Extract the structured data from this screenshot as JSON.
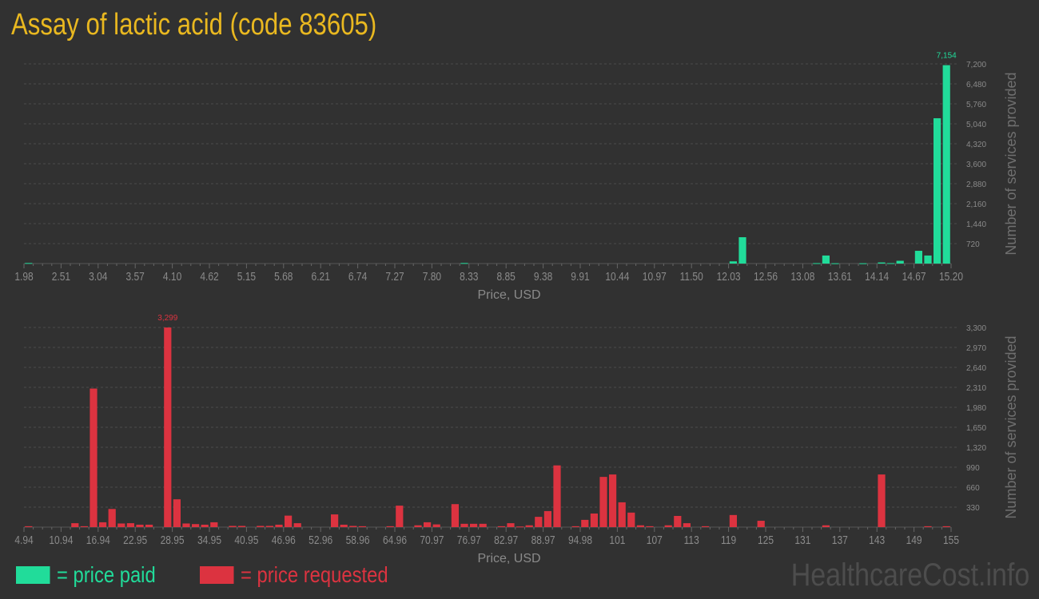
{
  "title": "Assay of lactic acid (code 83605)",
  "legend": {
    "paid": "= price paid",
    "requested": "= price requested"
  },
  "watermark": "HealthcareCost.info",
  "colors": {
    "paid": "#21dc9a",
    "requested": "#dc3340",
    "title": "#e9b820",
    "background": "#313131"
  },
  "chart_data": [
    {
      "type": "bar",
      "series": [
        {
          "name": "price paid"
        }
      ],
      "xlabel": "Price, USD",
      "ylabel": "Number of services provided",
      "xlim": [
        1.98,
        15.2
      ],
      "bin_width": 0.1322,
      "ylim": [
        0,
        7200
      ],
      "x_ticks": [
        "1.98",
        "2.51",
        "3.04",
        "3.57",
        "4.10",
        "4.62",
        "5.15",
        "5.68",
        "6.21",
        "6.74",
        "7.27",
        "7.80",
        "8.33",
        "8.85",
        "9.38",
        "9.91",
        "10.44",
        "10.97",
        "11.50",
        "12.03",
        "12.56",
        "13.08",
        "13.61",
        "14.14",
        "14.67",
        "15.20"
      ],
      "y_ticks": [
        "720",
        "1,440",
        "2,160",
        "2,880",
        "3,600",
        "4,320",
        "5,040",
        "5,760",
        "6,480",
        "7,200"
      ],
      "max_label": "7,154",
      "grid": true,
      "bars": [
        [
          1.98,
          20
        ],
        [
          8.19,
          20
        ],
        [
          12.03,
          80
        ],
        [
          12.16,
          950
        ],
        [
          13.22,
          15
        ],
        [
          13.35,
          290
        ],
        [
          13.48,
          10
        ],
        [
          13.88,
          10
        ],
        [
          14.14,
          40
        ],
        [
          14.27,
          15
        ],
        [
          14.41,
          100
        ],
        [
          14.67,
          460
        ],
        [
          14.8,
          290
        ],
        [
          14.94,
          5240
        ],
        [
          15.07,
          7154
        ]
      ]
    },
    {
      "type": "bar",
      "series": [
        {
          "name": "price requested"
        }
      ],
      "xlabel": "Price, USD",
      "ylabel": "Number of services provided",
      "xlim": [
        4.94,
        155
      ],
      "bin_width": 1.5006,
      "ylim": [
        0,
        3300
      ],
      "x_ticks": [
        "4.94",
        "10.94",
        "16.94",
        "22.95",
        "28.95",
        "34.95",
        "40.95",
        "46.96",
        "52.96",
        "58.96",
        "64.96",
        "70.97",
        "76.97",
        "82.97",
        "88.97",
        "94.98",
        "101",
        "107",
        "113",
        "119",
        "125",
        "131",
        "137",
        "143",
        "149",
        "155"
      ],
      "y_ticks": [
        "330",
        "660",
        "990",
        "1,320",
        "1,650",
        "1,980",
        "2,310",
        "2,640",
        "2,970",
        "3,300"
      ],
      "max_label": "3,299",
      "grid": true,
      "bars": [
        [
          4.94,
          15
        ],
        [
          12.44,
          65
        ],
        [
          13.94,
          15
        ],
        [
          15.44,
          2290
        ],
        [
          16.94,
          80
        ],
        [
          18.45,
          300
        ],
        [
          19.95,
          60
        ],
        [
          21.45,
          65
        ],
        [
          22.95,
          40
        ],
        [
          24.45,
          40
        ],
        [
          27.45,
          3299
        ],
        [
          28.95,
          460
        ],
        [
          30.45,
          60
        ],
        [
          31.95,
          50
        ],
        [
          33.45,
          40
        ],
        [
          34.95,
          80
        ],
        [
          37.95,
          20
        ],
        [
          39.45,
          20
        ],
        [
          42.46,
          20
        ],
        [
          43.96,
          20
        ],
        [
          45.46,
          40
        ],
        [
          46.96,
          190
        ],
        [
          48.46,
          65
        ],
        [
          54.46,
          210
        ],
        [
          55.96,
          40
        ],
        [
          57.46,
          20
        ],
        [
          58.96,
          15
        ],
        [
          63.46,
          15
        ],
        [
          64.96,
          355
        ],
        [
          67.97,
          30
        ],
        [
          69.47,
          80
        ],
        [
          70.97,
          45
        ],
        [
          73.97,
          380
        ],
        [
          75.47,
          55
        ],
        [
          76.97,
          55
        ],
        [
          78.47,
          55
        ],
        [
          81.47,
          15
        ],
        [
          82.97,
          65
        ],
        [
          84.47,
          10
        ],
        [
          85.97,
          30
        ],
        [
          87.47,
          170
        ],
        [
          88.97,
          265
        ],
        [
          90.47,
          1020
        ],
        [
          93.48,
          15
        ],
        [
          94.98,
          120
        ],
        [
          96.48,
          225
        ],
        [
          97.98,
          830
        ],
        [
          99.48,
          870
        ],
        [
          100.98,
          410
        ],
        [
          102.48,
          240
        ],
        [
          103.98,
          30
        ],
        [
          105.48,
          15
        ],
        [
          108.48,
          30
        ],
        [
          109.98,
          185
        ],
        [
          111.48,
          65
        ],
        [
          114.48,
          15
        ],
        [
          118.99,
          200
        ],
        [
          123.49,
          105
        ],
        [
          133.99,
          30
        ],
        [
          142.99,
          870
        ],
        [
          150.5,
          15
        ],
        [
          153.5,
          15
        ]
      ]
    }
  ]
}
